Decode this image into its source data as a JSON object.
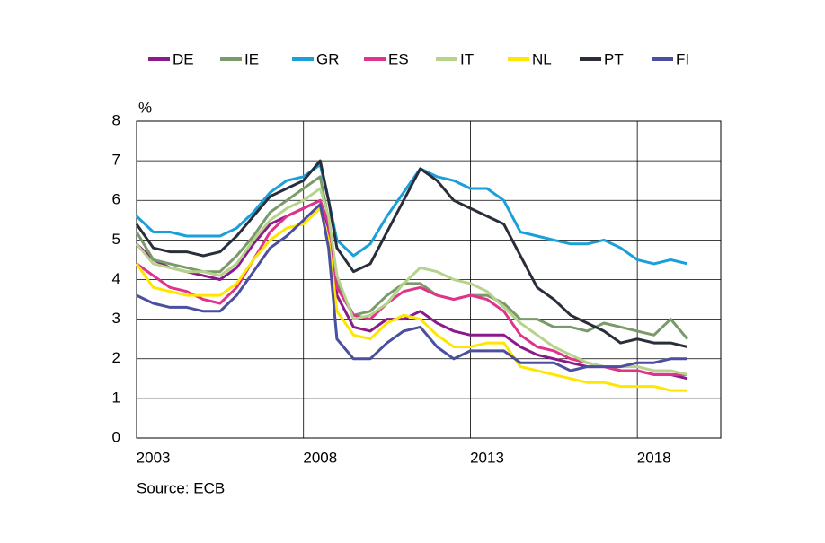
{
  "chart_data": {
    "type": "line",
    "y_label": "%",
    "source": "Source:  ECB",
    "x": [
      2003,
      2003.5,
      2004,
      2004.5,
      2005,
      2005.5,
      2006,
      2006.5,
      2007,
      2007.5,
      2008,
      2008.5,
      2008.75,
      2009,
      2009.5,
      2010,
      2010.5,
      2011,
      2011.5,
      2012,
      2012.5,
      2013,
      2013.5,
      2014,
      2014.5,
      2015,
      2015.5,
      2016,
      2016.5,
      2017,
      2017.5,
      2018,
      2018.5,
      2019,
      2019.5
    ],
    "series": [
      {
        "name": "DE",
        "color": "#8b1a8b",
        "values": [
          4.9,
          4.5,
          4.3,
          4.2,
          4.1,
          4.0,
          4.3,
          4.9,
          5.4,
          5.6,
          5.8,
          6.0,
          5.3,
          3.6,
          2.8,
          2.7,
          3.0,
          3.0,
          3.2,
          2.9,
          2.7,
          2.6,
          2.6,
          2.6,
          2.3,
          2.1,
          2.0,
          1.9,
          1.8,
          1.8,
          1.7,
          1.7,
          1.6,
          1.6,
          1.5
        ]
      },
      {
        "name": "IE",
        "color": "#7a9a6a",
        "values": [
          5.2,
          4.5,
          4.4,
          4.3,
          4.2,
          4.2,
          4.6,
          5.1,
          5.7,
          6.0,
          6.3,
          6.6,
          5.5,
          3.9,
          3.1,
          3.2,
          3.6,
          3.9,
          3.9,
          3.6,
          3.5,
          3.6,
          3.6,
          3.4,
          3.0,
          3.0,
          2.8,
          2.8,
          2.7,
          2.9,
          2.8,
          2.7,
          2.6,
          3.0,
          2.5
        ]
      },
      {
        "name": "GR",
        "color": "#1a9fd9",
        "values": [
          5.6,
          5.2,
          5.2,
          5.1,
          5.1,
          5.1,
          5.3,
          5.7,
          6.2,
          6.5,
          6.6,
          6.9,
          6.0,
          5.0,
          4.6,
          4.9,
          5.6,
          6.2,
          6.8,
          6.6,
          6.5,
          6.3,
          6.3,
          6.0,
          5.2,
          5.1,
          5.0,
          4.9,
          4.9,
          5.0,
          4.8,
          4.5,
          4.4,
          4.5,
          4.4
        ]
      },
      {
        "name": "ES",
        "color": "#e0338a",
        "values": [
          4.4,
          4.1,
          3.8,
          3.7,
          3.5,
          3.4,
          3.8,
          4.5,
          5.2,
          5.6,
          5.8,
          6.0,
          5.4,
          3.8,
          3.1,
          3.0,
          3.4,
          3.7,
          3.8,
          3.6,
          3.5,
          3.6,
          3.5,
          3.2,
          2.6,
          2.3,
          2.2,
          2.0,
          1.9,
          1.8,
          1.7,
          1.7,
          1.6,
          1.6,
          1.6
        ]
      },
      {
        "name": "IT",
        "color": "#b5d38a",
        "values": [
          4.9,
          4.4,
          4.3,
          4.2,
          4.2,
          4.1,
          4.4,
          5.0,
          5.5,
          5.8,
          6.0,
          6.3,
          5.6,
          4.1,
          3.0,
          3.1,
          3.4,
          3.9,
          4.3,
          4.2,
          4.0,
          3.9,
          3.7,
          3.3,
          2.9,
          2.6,
          2.3,
          2.1,
          1.9,
          1.8,
          1.8,
          1.8,
          1.7,
          1.7,
          1.6
        ]
      },
      {
        "name": "NL",
        "color": "#ffe600",
        "values": [
          4.4,
          3.8,
          3.7,
          3.6,
          3.6,
          3.6,
          3.9,
          4.5,
          5.0,
          5.3,
          5.4,
          5.8,
          5.0,
          3.2,
          2.6,
          2.5,
          2.9,
          3.1,
          3.0,
          2.6,
          2.3,
          2.3,
          2.4,
          2.4,
          1.8,
          1.7,
          1.6,
          1.5,
          1.4,
          1.4,
          1.3,
          1.3,
          1.3,
          1.2,
          1.2
        ]
      },
      {
        "name": "PT",
        "color": "#2a2e3a",
        "values": [
          5.4,
          4.8,
          4.7,
          4.7,
          4.6,
          4.7,
          5.1,
          5.6,
          6.1,
          6.3,
          6.5,
          7.0,
          6.0,
          4.8,
          4.2,
          4.4,
          5.2,
          6.0,
          6.8,
          6.5,
          6.0,
          5.8,
          5.6,
          5.4,
          4.6,
          3.8,
          3.5,
          3.1,
          2.9,
          2.7,
          2.4,
          2.5,
          2.4,
          2.4,
          2.3
        ]
      },
      {
        "name": "FI",
        "color": "#4b4fa0",
        "values": [
          3.6,
          3.4,
          3.3,
          3.3,
          3.2,
          3.2,
          3.6,
          4.2,
          4.8,
          5.1,
          5.5,
          5.9,
          4.8,
          2.5,
          2.0,
          2.0,
          2.4,
          2.7,
          2.8,
          2.3,
          2.0,
          2.2,
          2.2,
          2.2,
          1.9,
          1.9,
          1.9,
          1.7,
          1.8,
          1.8,
          1.8,
          1.9,
          1.9,
          2.0,
          2.0
        ]
      }
    ],
    "xlim": [
      2003,
      2020.5
    ],
    "xticks": [
      {
        "value": 2003.5,
        "label": "2003"
      },
      {
        "value": 2008.5,
        "label": "2008"
      },
      {
        "value": 2013.5,
        "label": "2013"
      },
      {
        "value": 2018.5,
        "label": "2018"
      }
    ],
    "xgrid": [
      2008,
      2013,
      2018
    ],
    "ylim": [
      0,
      8
    ],
    "yticks": [
      0,
      1,
      2,
      3,
      4,
      5,
      6,
      7,
      8
    ],
    "grid": true,
    "legend": "top"
  }
}
